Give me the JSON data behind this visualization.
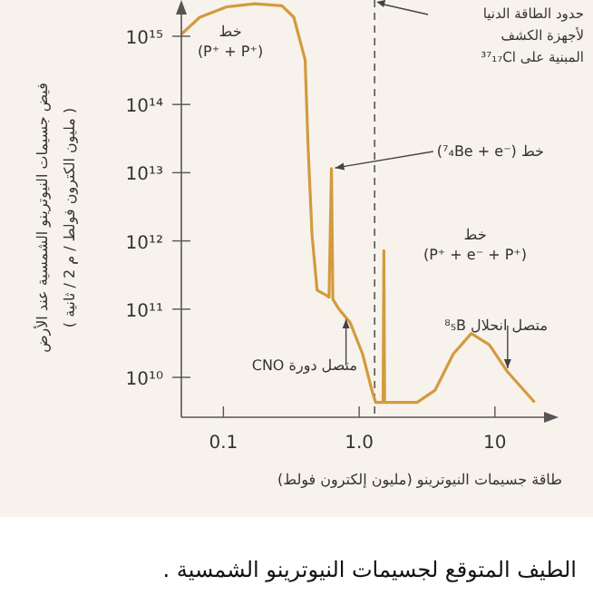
{
  "chart_data": {
    "type": "line",
    "title": "الطيف المتوقع لجسيمات النيوترينو الشمسية .",
    "xlabel": "طاقة جسيمات النيوترينو (مليون إلكترون فولط)",
    "ylabel": "فيض جسيمات النيوترينو الشمسية عند الأرض\n( مليون الكترون فولط / م 2 / ثانية )",
    "log": "xy",
    "xlim": [
      0.049,
      23
    ],
    "ylim": [
      2600000000.0,
      3400000000000000.0
    ],
    "xticks": [
      0.1,
      {
        "value": 1,
        "label": "1.0"
      },
      10
    ],
    "yticks": [
      {
        "value": 10000000000.0,
        "label": "10¹⁰"
      },
      {
        "value": 100000000000.0,
        "label": "10¹¹"
      },
      {
        "value": 1000000000000.0,
        "label": "10¹²"
      },
      {
        "value": 10000000000000.0,
        "label": "10¹³"
      },
      {
        "value": 100000000000000.0,
        "label": "10¹⁴"
      },
      {
        "value": 1000000000000000.0,
        "label": "10¹⁵"
      }
    ],
    "grid": false,
    "marker": "none",
    "line_style": "solid",
    "series": [
      {
        "color": "#d49a3e",
        "x": [
          0.049,
          0.067,
          0.106,
          0.17,
          0.27,
          0.33,
          0.4,
          0.42,
          0.45,
          0.49,
          0.57,
          0.6,
          0.625,
          0.64,
          0.71,
          0.86,
          1.06,
          1.24,
          1.32,
          1.5,
          1.52,
          1.54,
          2.67,
          3.63,
          4.93,
          6.7,
          9.1,
          12.4,
          19.6
        ],
        "values": [
          1070000000000000.0,
          1900000000000000.0,
          2700000000000000.0,
          3000000000000000.0,
          2800000000000000.0,
          1900000000000000.0,
          450000000000000.0,
          25000000000000.0,
          1200000000000.0,
          190000000000.0,
          160000000000.0,
          150000000000.0,
          11500000000000.0,
          140000000000.0,
          100000000000.0,
          63000000000.0,
          22000000000.0,
          6500000000.0,
          4300000000.0,
          4300000000.0,
          720000000000.0,
          4300000000.0,
          4300000000.0,
          6500000000.0,
          22000000000.0,
          44000000000.0,
          30000000000.0,
          12000000000.0,
          4300000000.0
        ]
      }
    ],
    "ref_lines": [
      {
        "axis": "x",
        "value": 1.3,
        "label": "حدود الطاقة الدنيا\nلأجهزة الكشف\nالمبنية على ³⁷₁₇Cl",
        "line_style": "dashed",
        "color": "#555555"
      }
    ],
    "annotations": [
      "خط\n(P⁺ + P⁺)",
      {
        "text": "خط  (⁷₄Be + e⁻)",
        "x": 0.625,
        "y": 11500000000000.0
      },
      "خط\n(P⁺ + e⁻ + P⁺)",
      {
        "text": "متصل انحلال ⁸₅B",
        "x": 12.4,
        "y": 12000000000.0
      },
      {
        "text": "متصل دورة CNO",
        "x": 0.8,
        "y": 80000000000.0
      }
    ]
  }
}
